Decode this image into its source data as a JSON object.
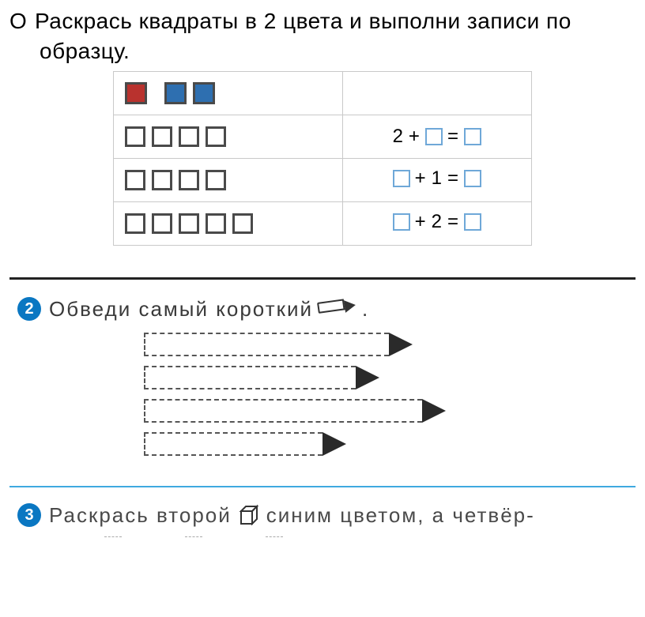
{
  "task1": {
    "bullet": "О",
    "line1": "Раскрась  квадраты  в  2  цвета  и  выполни  записи  по",
    "line2": "образцу.",
    "rows": [
      {
        "squares": [
          {
            "size": 28,
            "fill": "#b9322e",
            "border": "#4a4a4a"
          },
          {
            "gap": true
          },
          {
            "size": 28,
            "fill": "#2e6fb0",
            "border": "#4a4a4a"
          },
          {
            "size": 28,
            "fill": "#2e6fb0",
            "border": "#4a4a4a"
          }
        ],
        "equation": null
      },
      {
        "squares": [
          {
            "size": 26,
            "fill": "#ffffff",
            "border": "#4a4a4a"
          },
          {
            "size": 26,
            "fill": "#ffffff",
            "border": "#4a4a4a"
          },
          {
            "size": 26,
            "fill": "#ffffff",
            "border": "#4a4a4a"
          },
          {
            "size": 26,
            "fill": "#ffffff",
            "border": "#4a4a4a"
          }
        ],
        "equation": {
          "left_num": "2",
          "op": "+",
          "mid_box": true,
          "eq": "=",
          "right_box": true
        }
      },
      {
        "squares": [
          {
            "size": 26,
            "fill": "#ffffff",
            "border": "#4a4a4a"
          },
          {
            "size": 26,
            "fill": "#ffffff",
            "border": "#4a4a4a"
          },
          {
            "size": 26,
            "fill": "#ffffff",
            "border": "#4a4a4a"
          },
          {
            "size": 26,
            "fill": "#ffffff",
            "border": "#4a4a4a"
          }
        ],
        "equation": {
          "left_box": true,
          "op": "+",
          "mid_num": "1",
          "eq": "=",
          "right_box": true
        }
      },
      {
        "squares": [
          {
            "size": 26,
            "fill": "#ffffff",
            "border": "#4a4a4a"
          },
          {
            "size": 26,
            "fill": "#ffffff",
            "border": "#4a4a4a"
          },
          {
            "size": 26,
            "fill": "#ffffff",
            "border": "#4a4a4a"
          },
          {
            "size": 26,
            "fill": "#ffffff",
            "border": "#4a4a4a"
          },
          {
            "size": 26,
            "fill": "#ffffff",
            "border": "#4a4a4a"
          }
        ],
        "equation": {
          "left_box": true,
          "op": "+",
          "mid_num": "2",
          "eq": "=",
          "right_box": true
        }
      }
    ],
    "eq_box_border": "#6fa8d8"
  },
  "task2": {
    "badge": "2",
    "badge_bg": "#0a77c2",
    "text_before": "Обведи  самый  короткий",
    "text_after": ".",
    "pencils": [
      {
        "body_width": 310,
        "total_width": 344
      },
      {
        "body_width": 268,
        "total_width": 302
      },
      {
        "body_width": 352,
        "total_width": 386
      },
      {
        "body_width": 226,
        "total_width": 260
      }
    ],
    "tip_width": 30,
    "tip_color": "#2a2a2a",
    "dash_color": "#555555"
  },
  "task3": {
    "badge": "3",
    "badge_bg": "#0a77c2",
    "text_p1": "Раскрась  второй",
    "text_p2": "синим  цветом,  а  четвёр-"
  },
  "colors": {
    "text": "#000000",
    "muted_text": "#3a3a3a",
    "table_border": "#c9c9c9",
    "hr_dark": "#222222",
    "hr_blue": "#3fa9e0"
  }
}
